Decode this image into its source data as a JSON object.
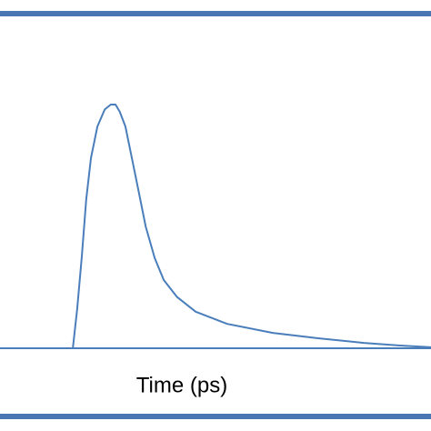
{
  "chart_data": {
    "type": "line",
    "xlabel": "Time (ps)",
    "x": [
      16.9,
      17.9,
      19.0,
      20.0,
      21.1,
      22.6,
      24.3,
      25.7,
      26.8,
      27.8,
      29.1,
      30.6,
      32.1,
      33.8,
      35.9,
      38.0,
      41.1,
      45.4,
      52.7,
      63.3,
      73.8,
      84.4,
      92.8,
      100
    ],
    "values": [
      0,
      0.16,
      0.38,
      0.61,
      0.78,
      0.91,
      0.98,
      1.0,
      1.0,
      0.97,
      0.91,
      0.78,
      0.65,
      0.5,
      0.37,
      0.28,
      0.21,
      0.15,
      0.1,
      0.063,
      0.041,
      0.022,
      0.011,
      0.004
    ],
    "color": "#4a7ebb",
    "xlim": [
      0,
      100
    ],
    "ylim": [
      0,
      1
    ]
  }
}
